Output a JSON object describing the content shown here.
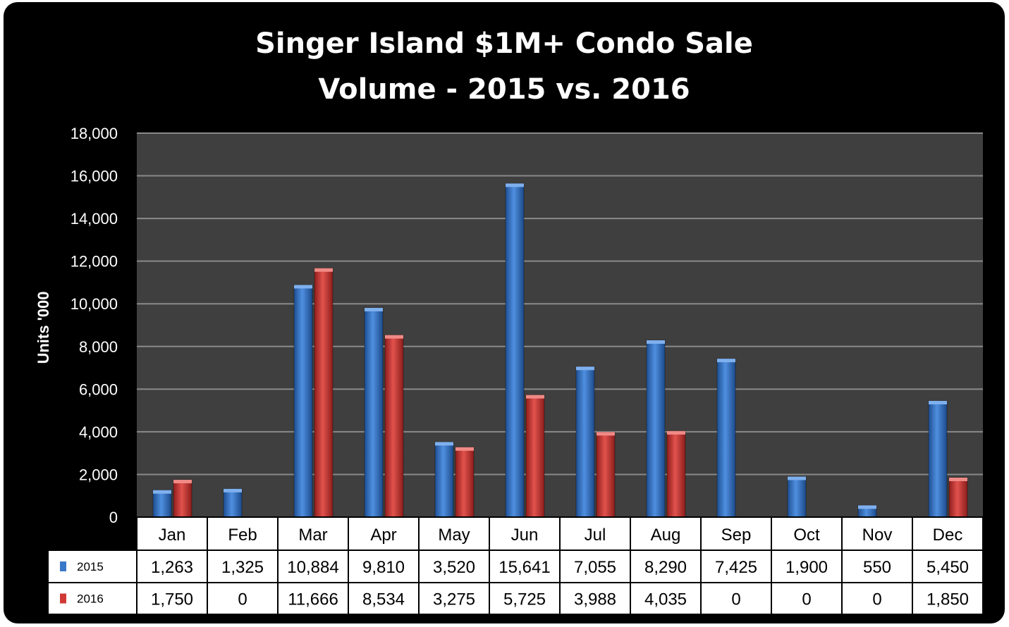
{
  "chart_data": {
    "type": "bar",
    "title_lines": [
      "Singer Island $1M+ Condo Sale",
      "Volume - 2015 vs. 2016"
    ],
    "ylabel": "Units '000",
    "ylim": [
      0,
      18000
    ],
    "yticks": [
      "0",
      "2,000",
      "4,000",
      "6,000",
      "8,000",
      "10,000",
      "12,000",
      "14,000",
      "16,000",
      "18,000"
    ],
    "grid": true,
    "legend_placement": "data table",
    "categories": [
      "Jan",
      "Feb",
      "Mar",
      "Apr",
      "May",
      "Jun",
      "Jul",
      "Aug",
      "Sep",
      "Oct",
      "Nov",
      "Dec"
    ],
    "series": [
      {
        "name": "2015",
        "color": "#3a78c8",
        "values": [
          1263,
          1325,
          10884,
          9810,
          3520,
          15641,
          7055,
          8290,
          7425,
          1900,
          550,
          5450
        ],
        "labels": [
          "1,263",
          "1,325",
          "10,884",
          "9,810",
          "3,520",
          "15,641",
          "7,055",
          "8,290",
          "7,425",
          "1,900",
          "550",
          "5,450"
        ]
      },
      {
        "name": "2016",
        "color": "#cf3a36",
        "values": [
          1750,
          0,
          11666,
          8534,
          3275,
          5725,
          3988,
          4035,
          0,
          0,
          0,
          1850
        ],
        "labels": [
          "1,750",
          "0",
          "11,666",
          "8,534",
          "3,275",
          "5,725",
          "3,988",
          "4,035",
          "0",
          "0",
          "0",
          "1,850"
        ]
      }
    ]
  },
  "colors": {
    "frame": "#000000",
    "plot_area": "#3f3f3f",
    "gridline": "#8a8a8a",
    "table_background": "#ffffff"
  }
}
